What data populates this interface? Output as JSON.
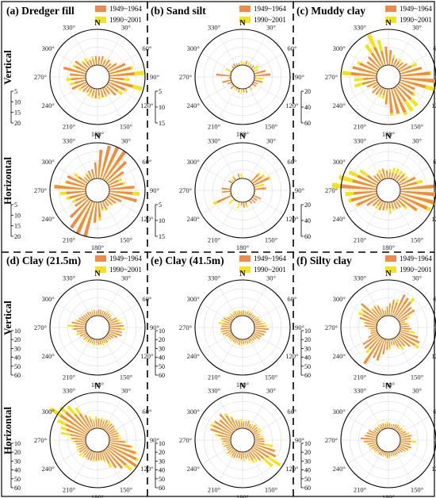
{
  "chart_data": [
    {
      "id": "a",
      "title": "(a) Dredger fill",
      "legend": [
        "1949~1964",
        "1990~2001"
      ],
      "scales": {
        "vertical": [
          "5",
          "10",
          "15",
          "20"
        ],
        "horizontal": [
          "5",
          "10",
          "15",
          "20"
        ]
      }
    },
    {
      "id": "b",
      "title": "(b) Sand silt",
      "legend": [
        "1949~1964",
        "1990~2001"
      ],
      "scales": {
        "vertical": [
          "5",
          "10",
          "15"
        ],
        "horizontal": [
          "5",
          "10",
          "15"
        ]
      }
    },
    {
      "id": "c",
      "title": "(c) Muddy clay",
      "legend": [
        "1949~1964",
        "1990~2001"
      ],
      "scales": {
        "vertical": [
          "20",
          "40",
          "60"
        ],
        "horizontal": [
          "20",
          "40",
          "60"
        ]
      }
    },
    {
      "id": "d",
      "title": "(d) Clay (21.5m)",
      "legend": [
        "1949~1964",
        "1990~2001"
      ],
      "scales": {
        "vertical": [
          "10",
          "20",
          "30",
          "40",
          "50",
          "60"
        ],
        "horizontal": [
          "10",
          "20",
          "30",
          "40",
          "50",
          "60"
        ]
      }
    },
    {
      "id": "e",
      "title": "(e) Clay (41.5m)",
      "legend": [
        "1949~1964",
        "1990~2001"
      ],
      "scales": {
        "vertical": [
          "10",
          "20",
          "30",
          "40",
          "50",
          "60"
        ],
        "horizontal": [
          "10",
          "20",
          "30",
          "40",
          "50",
          "60"
        ]
      }
    },
    {
      "id": "f",
      "title": "(f) Silty clay",
      "legend": [
        "1949~1964",
        "1990~2001"
      ],
      "scales": {
        "vertical": [
          "10",
          "20",
          "30",
          "40",
          "50",
          "60"
        ],
        "horizontal": [
          "10",
          "20",
          "30",
          "40",
          "50",
          "60"
        ]
      }
    }
  ],
  "row_labels": [
    "Vertical",
    "Horizontal"
  ],
  "angle_labels": [
    "N",
    "30°",
    "60°",
    "90°",
    "120°",
    "150°",
    "180°",
    "210°",
    "240°",
    "270°",
    "300°",
    "330°"
  ],
  "colors": {
    "series1": "#f08a4b",
    "series2": "#f5e31a"
  }
}
